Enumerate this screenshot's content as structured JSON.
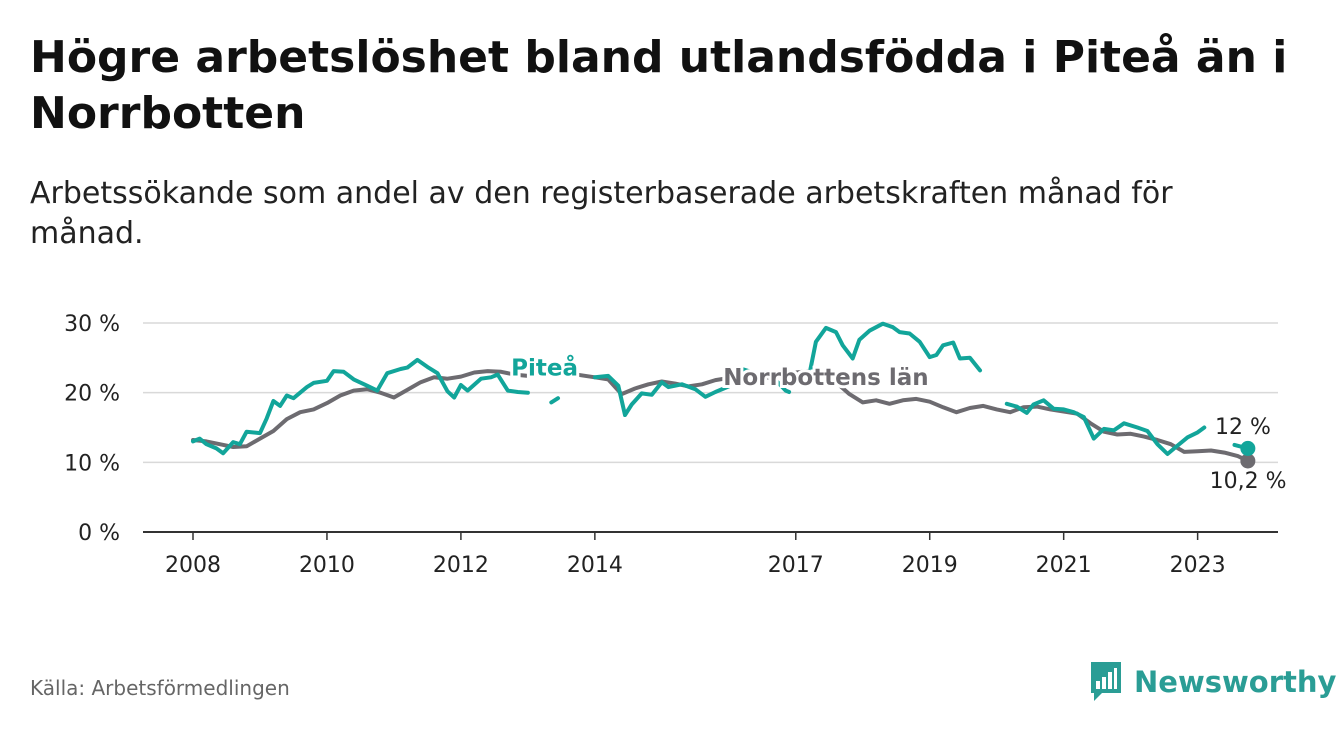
{
  "title": "Högre arbetslöshet bland utlandsfödda i Piteå än i Norrbotten",
  "subtitle": "Arbetssökande som andel av den registerbaserade arbetskraften månad för månad.",
  "source": "Källa: Arbetsförmedlingen",
  "brand": "Newsworthy",
  "colors": {
    "pitea": "#12a59a",
    "norrbotten": "#6d6b70",
    "grid": "#d9d9d9",
    "axis": "#333333",
    "brand": "#2a9d95"
  },
  "chart_data": {
    "type": "line",
    "title": "Högre arbetslöshet bland utlandsfödda i Piteå än i Norrbotten",
    "xlabel": "",
    "ylabel": "",
    "xlim": [
      2008.0,
      2024.2
    ],
    "ylim": [
      0,
      30
    ],
    "y_ticks": [
      0,
      10,
      20,
      30
    ],
    "y_tick_labels": [
      "0 %",
      "10 %",
      "20 %",
      "30 %"
    ],
    "x_ticks": [
      2008,
      2010,
      2012,
      2014,
      2017,
      2019,
      2021,
      2023
    ],
    "x_tick_labels": [
      "2008",
      "2010",
      "2012",
      "2014",
      "2017",
      "2019",
      "2021",
      "2023"
    ],
    "x_tick_positions": [
      2008,
      2010,
      2012,
      2014,
      2017,
      2019,
      2021,
      2023
    ],
    "series": [
      {
        "name": "Norrbottens län",
        "label": "Norrbottens län",
        "end_label": "10,2 %",
        "segments": [
          [
            [
              2008.0,
              13.2
            ],
            [
              2008.2,
              13.0
            ],
            [
              2008.4,
              12.6
            ],
            [
              2008.6,
              12.2
            ],
            [
              2008.8,
              12.3
            ],
            [
              2009.0,
              13.4
            ],
            [
              2009.2,
              14.5
            ],
            [
              2009.4,
              16.2
            ],
            [
              2009.6,
              17.2
            ],
            [
              2009.8,
              17.6
            ],
            [
              2010.0,
              18.5
            ],
            [
              2010.2,
              19.6
            ],
            [
              2010.4,
              20.3
            ],
            [
              2010.6,
              20.5
            ],
            [
              2010.8,
              20.0
            ],
            [
              2011.0,
              19.3
            ],
            [
              2011.2,
              20.4
            ],
            [
              2011.4,
              21.5
            ],
            [
              2011.6,
              22.2
            ],
            [
              2011.8,
              22.0
            ],
            [
              2012.0,
              22.3
            ],
            [
              2012.2,
              22.9
            ],
            [
              2012.4,
              23.1
            ],
            [
              2012.6,
              23.0
            ],
            [
              2012.8,
              22.6
            ],
            [
              2013.0,
              22.4
            ],
            [
              2013.2,
              22.7
            ],
            [
              2013.4,
              22.9
            ],
            [
              2013.6,
              22.8
            ],
            [
              2013.8,
              22.5
            ],
            [
              2014.0,
              22.2
            ],
            [
              2014.2,
              21.9
            ],
            [
              2014.4,
              19.8
            ],
            [
              2014.6,
              20.6
            ],
            [
              2014.8,
              21.2
            ],
            [
              2015.0,
              21.6
            ],
            [
              2015.2,
              21.3
            ],
            [
              2015.4,
              20.9
            ],
            [
              2015.6,
              21.2
            ],
            [
              2015.8,
              21.8
            ],
            [
              2016.0,
              22.1
            ],
            [
              2016.2,
              22.0
            ],
            [
              2016.4,
              21.9
            ],
            [
              2016.6,
              22.2
            ],
            [
              2016.8,
              22.5
            ],
            [
              2017.0,
              22.9
            ],
            [
              2017.2,
              23.1
            ],
            [
              2017.4,
              22.6
            ],
            [
              2017.6,
              21.5
            ],
            [
              2017.8,
              19.8
            ],
            [
              2018.0,
              18.6
            ],
            [
              2018.2,
              18.9
            ],
            [
              2018.4,
              18.4
            ],
            [
              2018.6,
              18.9
            ],
            [
              2018.8,
              19.1
            ],
            [
              2019.0,
              18.7
            ],
            [
              2019.2,
              17.9
            ],
            [
              2019.4,
              17.2
            ],
            [
              2019.6,
              17.8
            ],
            [
              2019.8,
              18.1
            ],
            [
              2020.0,
              17.6
            ],
            [
              2020.2,
              17.2
            ],
            [
              2020.4,
              17.9
            ],
            [
              2020.6,
              18.0
            ],
            [
              2020.8,
              17.6
            ],
            [
              2021.0,
              17.3
            ],
            [
              2021.2,
              17.0
            ],
            [
              2021.4,
              15.6
            ],
            [
              2021.6,
              14.4
            ],
            [
              2021.8,
              14.0
            ],
            [
              2022.0,
              14.1
            ],
            [
              2022.2,
              13.7
            ],
            [
              2022.4,
              13.2
            ],
            [
              2022.6,
              12.6
            ],
            [
              2022.8,
              11.5
            ],
            [
              2023.0,
              11.6
            ],
            [
              2023.2,
              11.7
            ],
            [
              2023.4,
              11.4
            ],
            [
              2023.6,
              10.9
            ],
            [
              2023.75,
              10.2
            ]
          ]
        ]
      },
      {
        "name": "Piteå",
        "label": "Piteå",
        "end_label": "12 %",
        "segments": [
          [
            [
              2008.0,
              13.0
            ],
            [
              2008.1,
              13.4
            ],
            [
              2008.2,
              12.6
            ],
            [
              2008.35,
              12.0
            ],
            [
              2008.45,
              11.3
            ],
            [
              2008.6,
              12.9
            ],
            [
              2008.7,
              12.6
            ],
            [
              2008.8,
              14.4
            ],
            [
              2009.0,
              14.2
            ],
            [
              2009.1,
              16.3
            ],
            [
              2009.2,
              18.8
            ],
            [
              2009.3,
              18.1
            ],
            [
              2009.4,
              19.6
            ],
            [
              2009.5,
              19.2
            ],
            [
              2009.7,
              20.8
            ],
            [
              2009.8,
              21.4
            ],
            [
              2010.0,
              21.7
            ],
            [
              2010.1,
              23.1
            ],
            [
              2010.25,
              23.0
            ],
            [
              2010.4,
              21.9
            ],
            [
              2010.6,
              21.0
            ],
            [
              2010.75,
              20.3
            ],
            [
              2010.9,
              22.8
            ],
            [
              2011.1,
              23.4
            ],
            [
              2011.2,
              23.6
            ],
            [
              2011.35,
              24.7
            ],
            [
              2011.5,
              23.7
            ],
            [
              2011.65,
              22.8
            ],
            [
              2011.8,
              20.2
            ],
            [
              2011.9,
              19.3
            ],
            [
              2012.0,
              21.1
            ],
            [
              2012.1,
              20.3
            ],
            [
              2012.3,
              22.0
            ],
            [
              2012.45,
              22.2
            ],
            [
              2012.55,
              22.6
            ],
            [
              2012.7,
              20.3
            ],
            [
              2012.85,
              20.1
            ],
            [
              2013.0,
              20.0
            ]
          ],
          [
            [
              2013.35,
              18.6
            ],
            [
              2013.45,
              19.2
            ]
          ],
          [
            [
              2014.0,
              22.2
            ],
            [
              2014.2,
              22.4
            ],
            [
              2014.35,
              21.0
            ],
            [
              2014.45,
              16.8
            ],
            [
              2014.55,
              18.3
            ],
            [
              2014.7,
              19.9
            ],
            [
              2014.85,
              19.7
            ],
            [
              2015.0,
              21.5
            ],
            [
              2015.1,
              20.8
            ],
            [
              2015.3,
              21.2
            ],
            [
              2015.5,
              20.5
            ],
            [
              2015.65,
              19.4
            ],
            [
              2015.8,
              20.1
            ],
            [
              2016.0,
              20.9
            ],
            [
              2016.2,
              23.4
            ],
            [
              2016.3,
              23.1
            ],
            [
              2016.4,
              22.6
            ],
            [
              2016.55,
              22.9
            ],
            [
              2016.7,
              21.8
            ],
            [
              2016.85,
              20.3
            ],
            [
              2016.9,
              20.1
            ]
          ],
          [
            [
              2017.2,
              22.5
            ],
            [
              2017.3,
              27.3
            ],
            [
              2017.45,
              29.3
            ],
            [
              2017.6,
              28.7
            ],
            [
              2017.7,
              26.8
            ],
            [
              2017.85,
              24.9
            ],
            [
              2017.95,
              27.6
            ],
            [
              2018.1,
              28.9
            ],
            [
              2018.3,
              29.9
            ],
            [
              2018.45,
              29.4
            ],
            [
              2018.55,
              28.7
            ],
            [
              2018.7,
              28.5
            ],
            [
              2018.85,
              27.3
            ],
            [
              2019.0,
              25.1
            ],
            [
              2019.1,
              25.4
            ],
            [
              2019.2,
              26.8
            ],
            [
              2019.35,
              27.2
            ],
            [
              2019.45,
              24.9
            ],
            [
              2019.6,
              25.0
            ],
            [
              2019.75,
              23.2
            ]
          ],
          [
            [
              2020.15,
              18.4
            ],
            [
              2020.3,
              18.0
            ],
            [
              2020.45,
              17.1
            ],
            [
              2020.55,
              18.3
            ],
            [
              2020.7,
              18.9
            ],
            [
              2020.85,
              17.7
            ],
            [
              2021.0,
              17.6
            ],
            [
              2021.15,
              17.2
            ],
            [
              2021.3,
              16.5
            ],
            [
              2021.45,
              13.4
            ],
            [
              2021.6,
              14.8
            ],
            [
              2021.75,
              14.6
            ],
            [
              2021.9,
              15.6
            ],
            [
              2022.1,
              15.0
            ],
            [
              2022.25,
              14.5
            ],
            [
              2022.4,
              12.6
            ],
            [
              2022.55,
              11.2
            ],
            [
              2022.7,
              12.4
            ],
            [
              2022.85,
              13.6
            ],
            [
              2023.0,
              14.3
            ],
            [
              2023.1,
              15.0
            ]
          ],
          [
            [
              2023.55,
              12.5
            ],
            [
              2023.75,
              12.0
            ]
          ]
        ]
      }
    ]
  }
}
